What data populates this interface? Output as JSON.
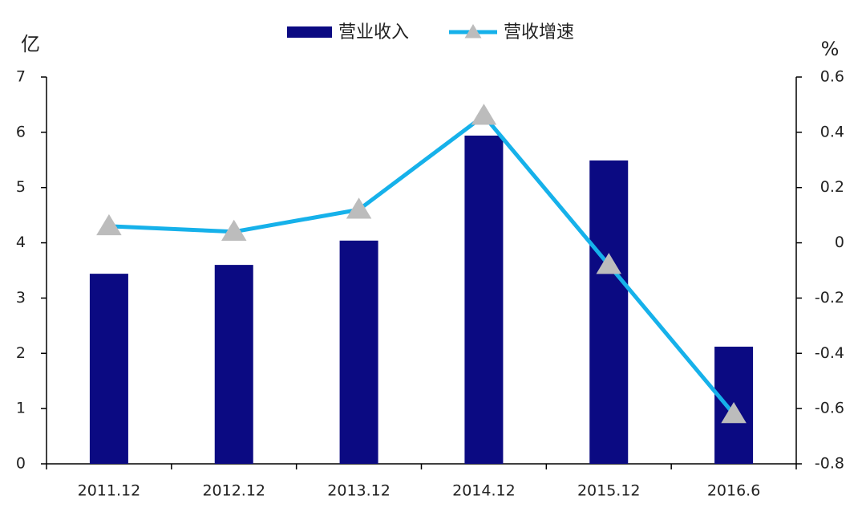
{
  "chart_data": {
    "type": "bar",
    "y_label": "亿",
    "y2_label": "%",
    "categories": [
      "2011.12",
      "2012.12",
      "2013.12",
      "2014.12",
      "2015.12",
      "2016.6"
    ],
    "series": [
      {
        "name": "营业收入",
        "type": "bar",
        "color": "#0b0a82",
        "values": [
          3.44,
          3.6,
          4.04,
          5.94,
          5.49,
          2.12
        ]
      },
      {
        "name": "营收增速",
        "type": "line",
        "axis": "y2",
        "color": "#16b1ea",
        "marker_color": "#bcbcbc",
        "values": [
          0.06,
          0.04,
          0.12,
          0.46,
          -0.08,
          -0.62
        ]
      }
    ],
    "ylim": [
      0,
      7
    ],
    "yticks": [
      0,
      1,
      2,
      3,
      4,
      5,
      6,
      7
    ],
    "y2lim": [
      -0.8,
      0.6
    ],
    "y2ticks": [
      -0.8,
      -0.6,
      -0.4,
      -0.2,
      0,
      0.2,
      0.4,
      0.6
    ],
    "legend": "top"
  }
}
